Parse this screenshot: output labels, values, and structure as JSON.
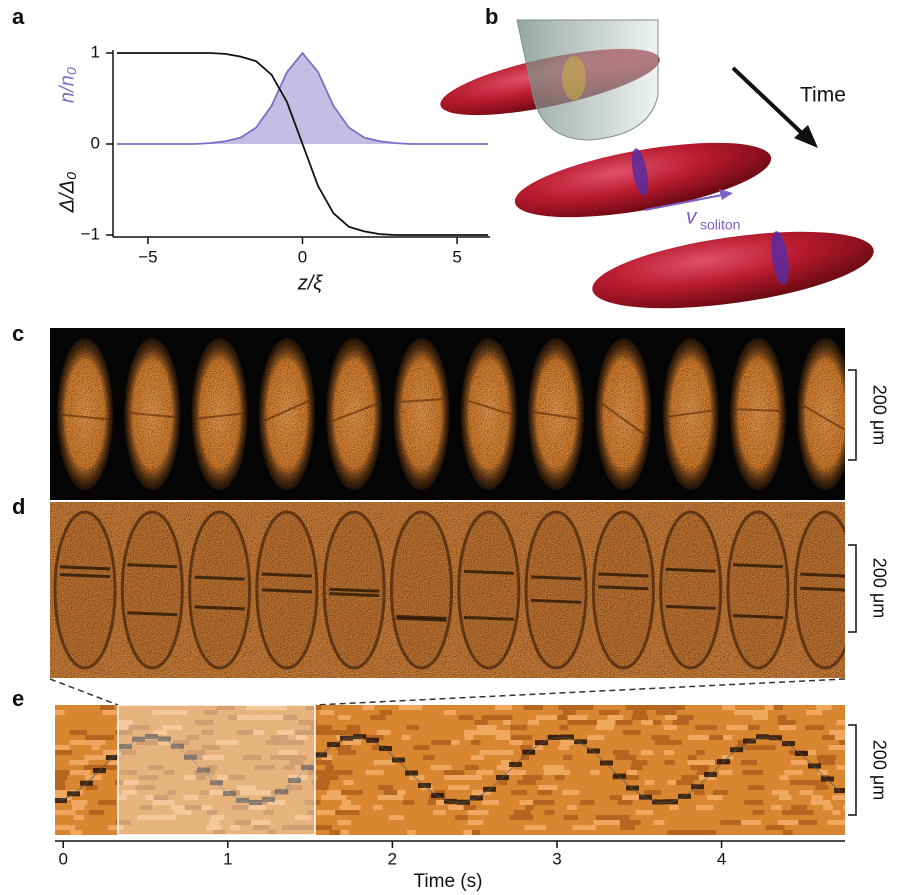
{
  "panel_labels": [
    "a",
    "b",
    "c",
    "d",
    "e"
  ],
  "chart_data": [
    {
      "type": "line",
      "xlabel": "z/ξ",
      "x": [
        -6,
        -5.5,
        -5,
        -4.5,
        -4,
        -3.5,
        -3,
        -2.5,
        -2,
        -1.5,
        -1,
        -0.5,
        0,
        0.5,
        1,
        1.5,
        2,
        2.5,
        3,
        3.5,
        4,
        4.5,
        5,
        5.5,
        6
      ],
      "series": [
        {
          "name": "Δ/Δ₀",
          "color": "#111111",
          "fill": false,
          "values": [
            1,
            1,
            1,
            1,
            1,
            1,
            1,
            0.99,
            0.96,
            0.91,
            0.76,
            0.46,
            0,
            -0.46,
            -0.76,
            -0.91,
            -0.96,
            -0.99,
            -1,
            -1,
            -1,
            -1,
            -1,
            -1,
            -1
          ]
        },
        {
          "name": "n/n₀",
          "color": "#7b6fc4",
          "fill": true,
          "values": [
            0,
            0,
            0,
            0,
            0,
            0,
            0.01,
            0.03,
            0.07,
            0.18,
            0.42,
            0.79,
            1,
            0.79,
            0.42,
            0.18,
            0.07,
            0.03,
            0.01,
            0,
            0,
            0,
            0,
            0,
            0
          ]
        }
      ],
      "xlim": [
        -6,
        6
      ],
      "xticks": [
        {
          "value": -5,
          "label": "−5"
        },
        0,
        5
      ],
      "ylim": [
        -1,
        1
      ],
      "yticks": [
        {
          "value": -1,
          "label": "−1"
        },
        0,
        1
      ]
    },
    {
      "type": "image",
      "xlabel": "Time (s)",
      "xlim": [
        -0.05,
        4.75
      ],
      "xticks": [
        0,
        1,
        2,
        3,
        4
      ]
    }
  ],
  "diagram": {
    "time_label": "Time",
    "velocity_symbol": "v",
    "velocity_subscript": "soliton"
  },
  "scale_bars": [
    "200 μm",
    "200 μm",
    "200 μm"
  ]
}
